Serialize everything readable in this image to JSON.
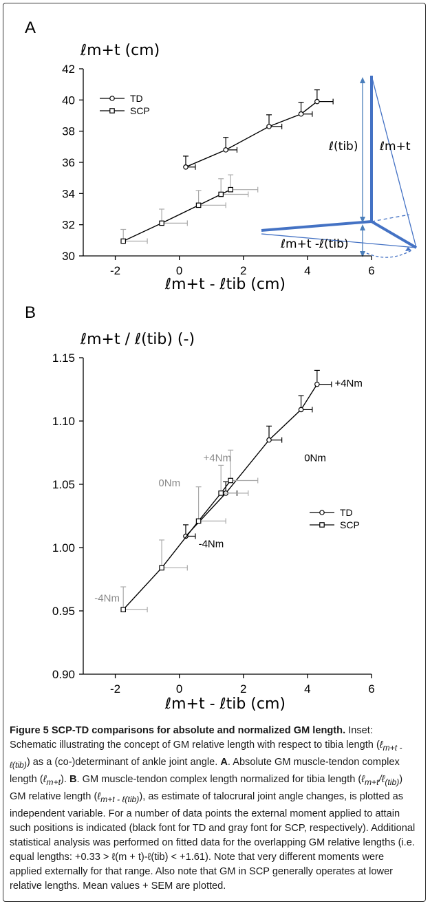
{
  "chart_data": [
    {
      "type": "line",
      "panel_label": "A",
      "ylabel": "ℓm+t (cm)",
      "xlabel": "ℓm+t  -  ℓtib (cm)",
      "xlim": [
        -3,
        6
      ],
      "ylim": [
        30,
        42
      ],
      "xticks": [
        -2,
        0,
        2,
        4,
        6
      ],
      "yticks": [
        30,
        32,
        34,
        36,
        38,
        40,
        42
      ],
      "xtick_labels": [
        "-2",
        "0",
        "2",
        "4",
        "6"
      ],
      "ytick_labels": [
        "30",
        "32",
        "34",
        "36",
        "38",
        "40",
        "42"
      ],
      "legend": {
        "position": "top-left",
        "entries": [
          "TD",
          "SCP"
        ]
      },
      "series": [
        {
          "name": "TD",
          "marker": "circle",
          "color": "#000000",
          "points": [
            {
              "x": 0.2,
              "y": 35.7,
              "x_err": 0.3,
              "y_err": 0.7
            },
            {
              "x": 1.45,
              "y": 36.8,
              "x_err": 0.35,
              "y_err": 0.8
            },
            {
              "x": 2.8,
              "y": 38.3,
              "x_err": 0.4,
              "y_err": 0.75
            },
            {
              "x": 3.8,
              "y": 39.1,
              "x_err": 0.35,
              "y_err": 0.75
            },
            {
              "x": 4.3,
              "y": 39.9,
              "x_err": 0.5,
              "y_err": 0.75
            }
          ]
        },
        {
          "name": "SCP",
          "marker": "square",
          "color": "#000000",
          "error_color": "#aaaaaa",
          "points": [
            {
              "x": -1.75,
              "y": 30.95,
              "x_err": 0.75,
              "y_err": 0.75
            },
            {
              "x": -0.55,
              "y": 32.1,
              "x_err": 0.8,
              "y_err": 0.9
            },
            {
              "x": 0.6,
              "y": 33.25,
              "x_err": 0.85,
              "y_err": 0.95
            },
            {
              "x": 1.3,
              "y": 33.95,
              "x_err": 0.85,
              "y_err": 1.0
            },
            {
              "x": 1.6,
              "y": 34.25,
              "x_err": 0.85,
              "y_err": 0.95
            }
          ]
        }
      ],
      "inset": {
        "labels": {
          "tib": "ℓ(tib)",
          "mt": "ℓm+t",
          "diff": "ℓm+t -ℓ(tib)"
        },
        "colors": {
          "bone": "#4472c4",
          "arrow": "#4a7ebb"
        }
      }
    },
    {
      "type": "line",
      "panel_label": "B",
      "ylabel": "ℓm+t / ℓ(tib) (-)",
      "xlabel": "ℓm+t  -  ℓtib (cm)",
      "xlim": [
        -3,
        6
      ],
      "ylim": [
        0.9,
        1.15
      ],
      "xticks": [
        -2,
        0,
        2,
        4,
        6
      ],
      "yticks": [
        0.9,
        0.95,
        1.0,
        1.05,
        1.1,
        1.15
      ],
      "xtick_labels": [
        "-2",
        "0",
        "2",
        "4",
        "6"
      ],
      "ytick_labels": [
        "0.90",
        "0.95",
        "1.00",
        "1.05",
        "1.10",
        "1.15"
      ],
      "legend": {
        "position": "bottom-right",
        "entries": [
          "TD",
          "SCP"
        ]
      },
      "series": [
        {
          "name": "TD",
          "marker": "circle",
          "color": "#000000",
          "points": [
            {
              "x": 0.2,
              "y": 1.009,
              "x_err": 0.3,
              "y_err": 0.009
            },
            {
              "x": 1.45,
              "y": 1.043,
              "x_err": 0.35,
              "y_err": 0.009
            },
            {
              "x": 2.8,
              "y": 1.085,
              "x_err": 0.4,
              "y_err": 0.011
            },
            {
              "x": 3.8,
              "y": 1.109,
              "x_err": 0.35,
              "y_err": 0.011
            },
            {
              "x": 4.3,
              "y": 1.129,
              "x_err": 0.45,
              "y_err": 0.011
            }
          ]
        },
        {
          "name": "SCP",
          "marker": "square",
          "color": "#000000",
          "error_color": "#aaaaaa",
          "points": [
            {
              "x": -1.75,
              "y": 0.951,
              "x_err": 0.75,
              "y_err": 0.018
            },
            {
              "x": -0.55,
              "y": 0.984,
              "x_err": 0.8,
              "y_err": 0.022
            },
            {
              "x": 0.6,
              "y": 1.021,
              "x_err": 0.85,
              "y_err": 0.027
            },
            {
              "x": 1.3,
              "y": 1.043,
              "x_err": 0.85,
              "y_err": 0.022
            },
            {
              "x": 1.6,
              "y": 1.053,
              "x_err": 0.85,
              "y_err": 0.024
            }
          ]
        }
      ],
      "annotations": [
        {
          "text": "+4Nm",
          "group": "TD",
          "x": 4.85,
          "y": 1.13
        },
        {
          "text": "0Nm",
          "group": "TD",
          "x": 3.9,
          "y": 1.071
        },
        {
          "text": "-4Nm",
          "group": "TD",
          "x": 0.6,
          "y": 1.003
        },
        {
          "text": "+4Nm",
          "group": "SCP",
          "x": 0.75,
          "y": 1.071
        },
        {
          "text": "0Nm",
          "group": "SCP",
          "x": -0.65,
          "y": 1.051
        },
        {
          "text": "-4Nm",
          "group": "SCP",
          "x": -2.65,
          "y": 0.96
        }
      ]
    }
  ],
  "caption": {
    "title": "Figure 5 SCP-TD comparisons for absolute and normalized GM length.",
    "s1": " Inset: Schematic illustrating the concept of GM relative length with respect to tibia length (",
    "m1": "ℓ",
    "m1sub": "m+t - ℓ(tib)",
    "s2": ") as a (co-)determinant of ankle joint angle. ",
    "a": "A",
    "s3": ". Absolute GM muscle-tendon complex length (",
    "m2": "ℓ",
    "m2sub": "m+t",
    "s4": "). ",
    "b": "B",
    "s5": ". GM muscle-tendon complex length normalized for tibia length (",
    "m3": "ℓ",
    "m3sub": "m+t",
    "m3b": "/ℓ",
    "m3bsub": "(tib)",
    "s6": ") GM relative length (",
    "m4": "ℓ",
    "m4sub": "m+t - ℓ(tib)",
    "s7": "), as estimate of talocrural joint angle changes, is plotted as independent variable. For a number of data points the external moment applied to attain such positions is indicated (black font for TD and gray font for SCP, respectively). Additional statistical analysis was performed on fitted data for the overlapping GM relative lengths (i.e. equal lengths: +0.33 > ℓ(m + t)-ℓ(tib) < +1.61). Note that very different moments were applied externally for that range. Also note that GM in SCP generally operates at lower relative lengths. Mean values + SEM are plotted."
  }
}
